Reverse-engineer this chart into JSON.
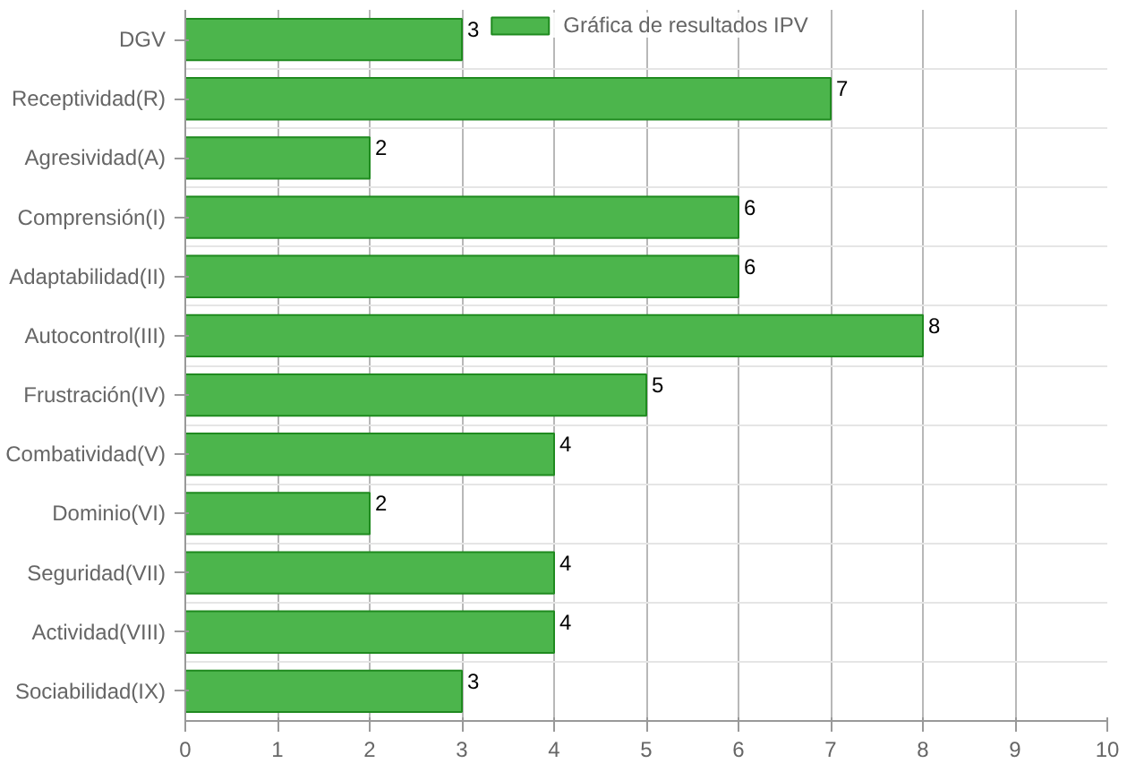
{
  "chart_data": {
    "type": "bar",
    "orientation": "horizontal",
    "categories": [
      "DGV",
      "Receptividad(R)",
      "Agresividad(A)",
      "Comprensión(I)",
      "Adaptabilidad(II)",
      "Autocontrol(III)",
      "Frustración(IV)",
      "Combatividad(V)",
      "Dominio(VI)",
      "Seguridad(VII)",
      "Actividad(VIII)",
      "Sociabilidad(IX)"
    ],
    "series": [
      {
        "name": "Gráfica de resultados IPV",
        "color": "#4cb54c",
        "values": [
          3,
          7,
          2,
          6,
          6,
          8,
          5,
          4,
          2,
          4,
          4,
          3
        ]
      }
    ],
    "xlim": [
      0,
      10
    ],
    "xticks": [
      0,
      1,
      2,
      3,
      4,
      5,
      6,
      7,
      8,
      9,
      10
    ],
    "grid": true,
    "legend": "top",
    "data_labels": true
  }
}
